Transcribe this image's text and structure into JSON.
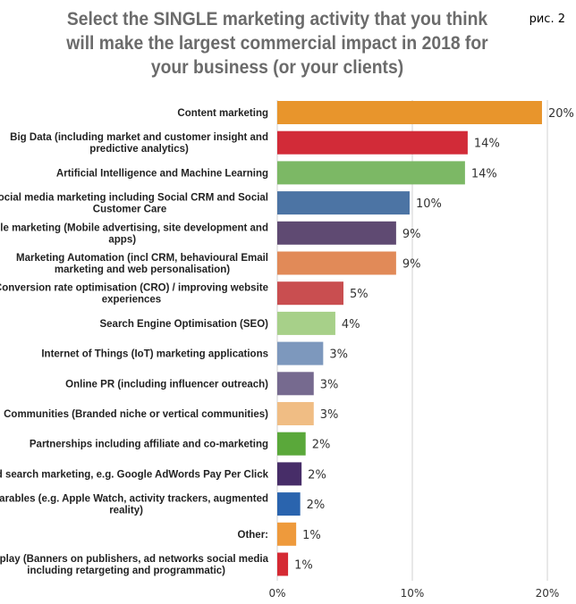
{
  "figure_label": "рис. 2",
  "chart_data": {
    "type": "bar",
    "orientation": "horizontal",
    "title": "Select the SINGLE marketing activity that you think will make the largest commercial impact in 2018 for your business (or your clients)",
    "xlabel": "",
    "ylabel": "",
    "xlim": [
      0,
      20
    ],
    "x_ticks": [
      "0%",
      "10%",
      "20%"
    ],
    "grid": "vertical",
    "categories": [
      [
        "Content marketing"
      ],
      [
        "Big Data (including market and customer insight and",
        "predictive analytics)"
      ],
      [
        "Artificial Intelligence and Machine Learning"
      ],
      [
        "Social media marketing including Social CRM and Social",
        "Customer Care"
      ],
      [
        "Mobile marketing (Mobile advertising, site development and",
        "apps)"
      ],
      [
        "Marketing Automation (incl CRM, behavioural Email",
        "marketing and web personalisation)"
      ],
      [
        "Conversion rate optimisation (CRO) / improving website",
        "experiences"
      ],
      [
        "Search Engine Optimisation (SEO)"
      ],
      [
        "Internet of Things (IoT) marketing applications"
      ],
      [
        "Online PR (including influencer outreach)"
      ],
      [
        "Communities (Branded niche or vertical communities)"
      ],
      [
        "Partnerships including affiliate and co-marketing"
      ],
      [
        "Paid search marketing, e.g. Google AdWords Pay Per Click"
      ],
      [
        "Wearables (e.g. Apple Watch, activity trackers, augmented",
        "reality)"
      ],
      [
        "Other:"
      ],
      [
        "Display (Banners on publishers, ad networks social media",
        "including retargeting and programmatic)"
      ]
    ],
    "values": [
      19.6,
      14.1,
      13.9,
      9.8,
      8.8,
      8.8,
      4.9,
      4.3,
      3.4,
      2.7,
      2.7,
      2.1,
      1.8,
      1.7,
      1.4,
      0.8
    ],
    "value_labels": [
      "20%",
      "14%",
      "14%",
      "10%",
      "9%",
      "9%",
      "5%",
      "4%",
      "3%",
      "3%",
      "3%",
      "2%",
      "2%",
      "2%",
      "1%",
      "1%"
    ],
    "colors": [
      "#e8952c",
      "#d22b38",
      "#7cb865",
      "#4c74a4",
      "#5f4a72",
      "#e18a58",
      "#c94e50",
      "#a7d089",
      "#7d98bd",
      "#766a8f",
      "#f0bd84",
      "#5aa83a",
      "#472d68",
      "#2a64ae",
      "#ee9a3c",
      "#d52a33"
    ]
  }
}
